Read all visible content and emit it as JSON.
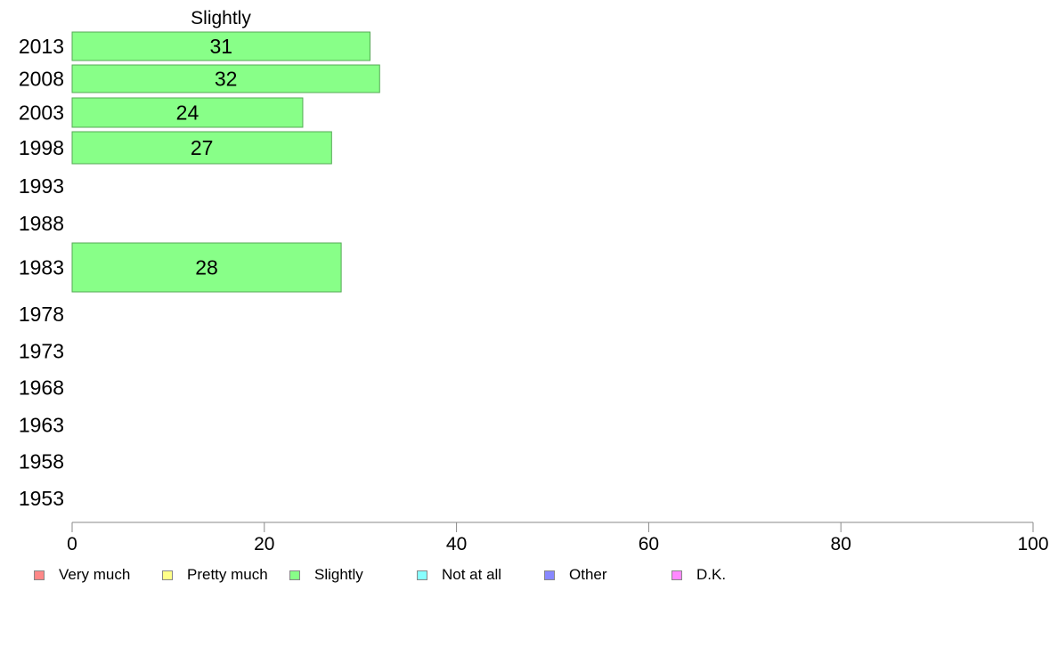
{
  "chart_data": {
    "type": "bar",
    "orientation": "horizontal",
    "title": "Slightly",
    "categories": [
      "2013",
      "2008",
      "2003",
      "1998",
      "1993",
      "1988",
      "1983",
      "1978",
      "1973",
      "1968",
      "1963",
      "1958",
      "1953"
    ],
    "series": [
      {
        "name": "Slightly",
        "values": [
          31,
          32,
          24,
          27,
          null,
          null,
          28,
          null,
          null,
          null,
          null,
          null,
          null
        ]
      }
    ],
    "xlim": [
      0,
      100
    ],
    "xticks": [
      "0",
      "20",
      "40",
      "60",
      "80",
      "100"
    ],
    "grid": false,
    "legend_position": "bottom",
    "bar_color": "#88ff88"
  },
  "legend": [
    {
      "label": "Very much",
      "color": "#ff8888"
    },
    {
      "label": "Pretty much",
      "color": "#ffff88"
    },
    {
      "label": "Slightly",
      "color": "#88ff88"
    },
    {
      "label": "Not at all",
      "color": "#88ffff"
    },
    {
      "label": "Other",
      "color": "#8888ff"
    },
    {
      "label": "D.K.",
      "color": "#ff88ff"
    }
  ]
}
